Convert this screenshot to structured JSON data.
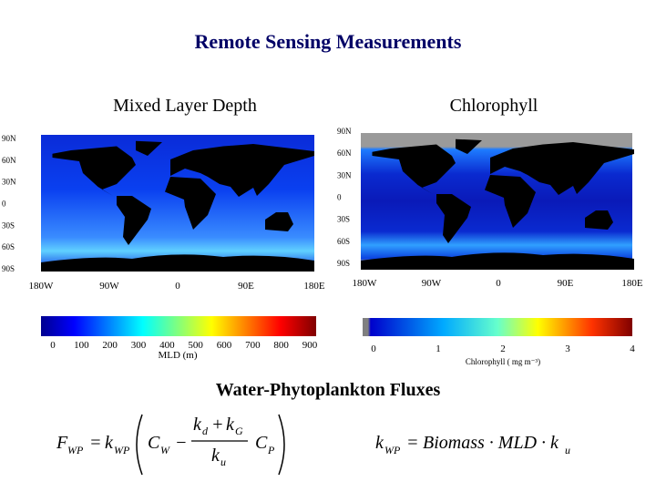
{
  "header": {
    "title": "Remote Sensing Measurements"
  },
  "panels": [
    {
      "title": "Mixed Layer Depth",
      "lat_labels": [
        "90N",
        "60N",
        "30N",
        "0",
        "30S",
        "60S",
        "90S"
      ],
      "lon_labels": [
        "180W",
        "90W",
        "0",
        "90E",
        "180E"
      ],
      "colorbar_ticks": [
        "0",
        "100",
        "200",
        "300",
        "400",
        "500",
        "600",
        "700",
        "800",
        "900"
      ],
      "colorbar_label": "MLD (m)"
    },
    {
      "title": "Chlorophyll",
      "lat_labels": [
        "90N",
        "60N",
        "30N",
        "0",
        "30S",
        "60S",
        "90S"
      ],
      "lon_labels": [
        "180W",
        "90W",
        "0",
        "90E",
        "180E"
      ],
      "colorbar_ticks": [
        "0",
        "1",
        "2",
        "3",
        "4"
      ],
      "colorbar_label": "Chlorophyll ( mg m⁻³)"
    }
  ],
  "section": {
    "title": "Water-Phytoplankton Fluxes"
  },
  "equations": [
    {
      "tokens": [
        "F",
        "WP",
        "=",
        "k",
        "WP",
        "C",
        "W",
        "−",
        "k",
        "d",
        "+",
        "k",
        "G",
        "k",
        "u",
        "C",
        "P"
      ]
    },
    {
      "tokens": [
        "k",
        "WP",
        "=",
        "Biomass · MLD · k",
        "u"
      ]
    }
  ]
}
